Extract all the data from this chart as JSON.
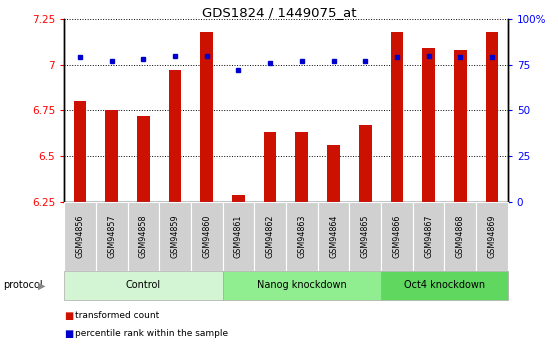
{
  "title": "GDS1824 / 1449075_at",
  "samples": [
    "GSM94856",
    "GSM94857",
    "GSM94858",
    "GSM94859",
    "GSM94860",
    "GSM94861",
    "GSM94862",
    "GSM94863",
    "GSM94864",
    "GSM94865",
    "GSM94866",
    "GSM94867",
    "GSM94868",
    "GSM94869"
  ],
  "red_values": [
    6.8,
    6.75,
    6.72,
    6.97,
    7.18,
    6.29,
    6.63,
    6.63,
    6.56,
    6.67,
    7.18,
    7.09,
    7.08,
    7.18
  ],
  "blue_values": [
    79,
    77,
    78,
    80,
    80,
    72,
    76,
    77,
    77,
    77,
    79,
    80,
    79,
    79
  ],
  "groups": [
    {
      "label": "Control",
      "start": 0,
      "end": 5
    },
    {
      "label": "Nanog knockdown",
      "start": 5,
      "end": 10
    },
    {
      "label": "Oct4 knockdown",
      "start": 10,
      "end": 14
    }
  ],
  "group_colors": [
    "#d4f5d4",
    "#90ee90",
    "#60d860"
  ],
  "ylim_left": [
    6.25,
    7.25
  ],
  "ylim_right": [
    0,
    100
  ],
  "yticks_left": [
    6.25,
    6.5,
    6.75,
    7.0,
    7.25
  ],
  "ytick_labels_left": [
    "6.25",
    "6.5",
    "6.75",
    "7",
    "7.25"
  ],
  "yticks_right": [
    0,
    25,
    50,
    75,
    100
  ],
  "ytick_labels_right": [
    "0",
    "25",
    "50",
    "75",
    "100%"
  ],
  "bar_color": "#cc1100",
  "dot_color": "#0000cc",
  "bar_bottom": 6.25,
  "sample_cell_color": "#d0d0d0",
  "legend_items": [
    {
      "label": "transformed count",
      "color": "#cc1100"
    },
    {
      "label": "percentile rank within the sample",
      "color": "#0000cc"
    }
  ],
  "protocol_label": "protocol"
}
